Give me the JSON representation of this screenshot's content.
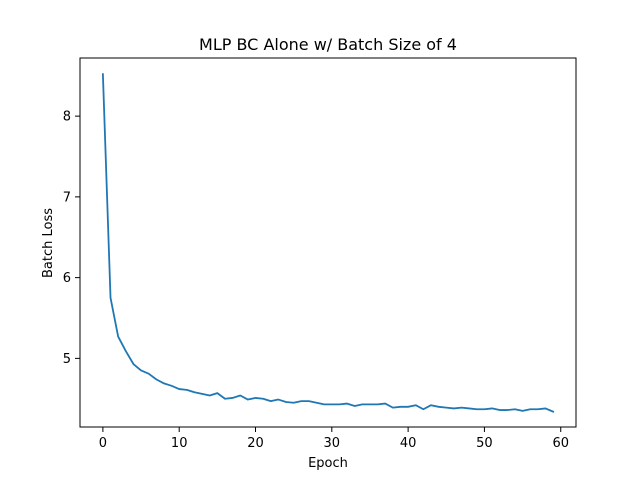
{
  "chart_data": {
    "type": "line",
    "title": "MLP BC Alone w/ Batch Size of 4",
    "xlabel": "Epoch",
    "ylabel": "Batch Loss",
    "xlim": [
      -3,
      62
    ],
    "ylim": [
      4.15,
      8.72
    ],
    "xticks": [
      0,
      10,
      20,
      30,
      40,
      50,
      60
    ],
    "yticks": [
      5,
      6,
      7,
      8
    ],
    "grid": false,
    "legend": "none",
    "series": [
      {
        "color": "#1f77b4",
        "x": [
          0,
          1,
          2,
          3,
          4,
          5,
          6,
          7,
          8,
          9,
          10,
          11,
          12,
          13,
          14,
          15,
          16,
          17,
          18,
          19,
          20,
          21,
          22,
          23,
          24,
          25,
          26,
          27,
          28,
          29,
          30,
          31,
          32,
          33,
          34,
          35,
          36,
          37,
          38,
          39,
          40,
          41,
          42,
          43,
          44,
          45,
          46,
          47,
          48,
          49,
          50,
          51,
          52,
          53,
          54,
          55,
          56,
          57,
          58,
          59
        ],
        "y": [
          8.52,
          5.75,
          5.27,
          5.09,
          4.93,
          4.85,
          4.81,
          4.74,
          4.69,
          4.66,
          4.62,
          4.61,
          4.58,
          4.56,
          4.54,
          4.57,
          4.5,
          4.51,
          4.54,
          4.49,
          4.51,
          4.5,
          4.47,
          4.49,
          4.46,
          4.45,
          4.47,
          4.47,
          4.45,
          4.43,
          4.43,
          4.43,
          4.44,
          4.41,
          4.43,
          4.43,
          4.43,
          4.44,
          4.39,
          4.4,
          4.4,
          4.42,
          4.37,
          4.42,
          4.4,
          4.39,
          4.38,
          4.39,
          4.38,
          4.37,
          4.37,
          4.38,
          4.36,
          4.36,
          4.37,
          4.35,
          4.37,
          4.37,
          4.38,
          4.34
        ]
      }
    ]
  }
}
